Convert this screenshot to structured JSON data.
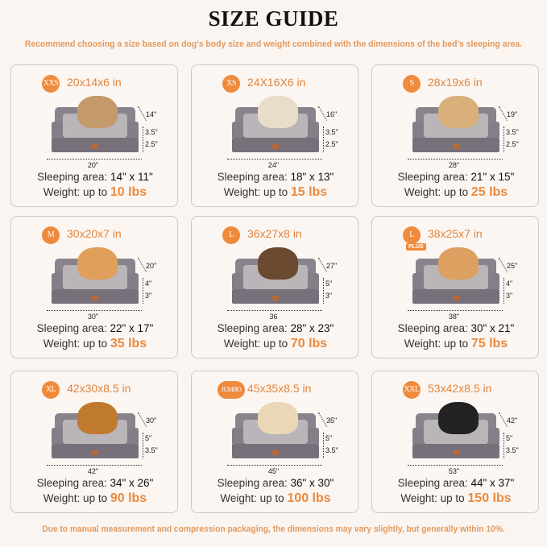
{
  "title": "SIZE GUIDE",
  "subtitle": "Recommend choosing a size based on dog's body size and weight combined with the dimensions of the bed's sleeping area.",
  "footer": "Due to manual measurement and compression packaging, the dimensions may vary slightly, but generally within 10%.",
  "labels": {
    "sleeping": "Sleeping area: ",
    "weight": "Weight: up to "
  },
  "colors": {
    "accent": "#f08a3c",
    "bed": "#857e88",
    "background": "#fbf5f1"
  },
  "sizes": [
    {
      "badge": "XXS",
      "dims": "20x14x6 in",
      "width": "20\"",
      "depth": "14\"",
      "h1": "3.5\"",
      "h2": "2.5\"",
      "sleeping": "14\" x 11\"",
      "weight": "10 lbs",
      "pet": "cat"
    },
    {
      "badge": "XS",
      "dims": "24X16X6 in",
      "width": "24\"",
      "depth": "16\"",
      "h1": "3.5\"",
      "h2": "2.5\"",
      "sleeping": "18\" x 13\"",
      "weight": "15 lbs",
      "pet": "dog"
    },
    {
      "badge": "S",
      "dims": "28x19x6 in",
      "width": "28\"",
      "depth": "19\"",
      "h1": "3.5\"",
      "h2": "2.5\"",
      "sleeping": "21\" x 15\"",
      "weight": "25 lbs",
      "pet": "dog"
    },
    {
      "badge": "M",
      "dims": "30x20x7 in",
      "width": "30\"",
      "depth": "20\"",
      "h1": "4\"",
      "h2": "3\"",
      "sleeping": "22\" x 17\"",
      "weight": "35 lbs",
      "pet": "dog"
    },
    {
      "badge": "L",
      "dims": "36x27x8 in",
      "width": "36",
      "depth": "27\"",
      "h1": "5\"",
      "h2": "3\"",
      "sleeping": "28\" x 23\"",
      "weight": "70 lbs",
      "pet": "dog"
    },
    {
      "badge": "L",
      "badge_extra": "PLUS",
      "dims": "38x25x7 in",
      "width": "38\"",
      "depth": "25\"",
      "h1": "4\"",
      "h2": "3\"",
      "sleeping": "30\" x 21\"",
      "weight": "75 lbs",
      "pet": "dog"
    },
    {
      "badge": "XL",
      "dims": "42x30x8.5 in",
      "width": "42\"",
      "depth": "30\"",
      "h1": "5\"",
      "h2": "3.5\"",
      "sleeping": "34\" x 26\"",
      "weight": "90 lbs",
      "pet": "dog"
    },
    {
      "badge": "JUMBO",
      "dims": "45x35x8.5 in",
      "width": "45\"",
      "depth": "35\"",
      "h1": "5\"",
      "h2": "3.5\"",
      "sleeping": "36\" x 30\"",
      "weight": "100 lbs",
      "pet": "dog"
    },
    {
      "badge": "XXL",
      "dims": "53x42x8.5 in",
      "width": "53\"",
      "depth": "42\"",
      "h1": "5\"",
      "h2": "3.5\"",
      "sleeping": "44\" x 37\"",
      "weight": "150 lbs",
      "pet": "dog"
    }
  ]
}
